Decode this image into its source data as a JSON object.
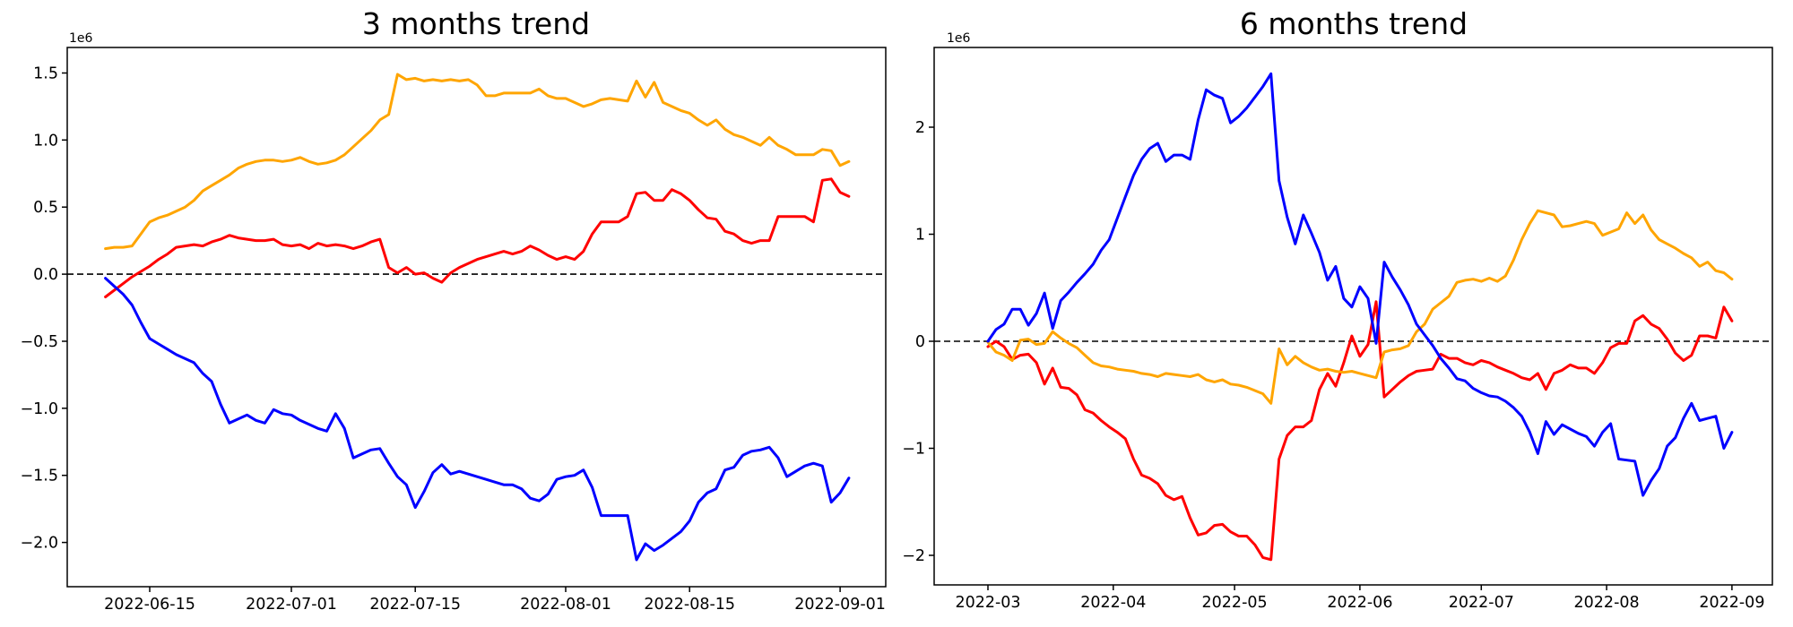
{
  "figure": {
    "background": "#ffffff",
    "text_color": "#000000"
  },
  "chart_data": [
    {
      "type": "line",
      "title": "3 months trend",
      "xlabel": "",
      "ylabel": "",
      "y_offset_label": "1e6",
      "y_unit": "1e6",
      "x_unit": "days since 2022-06-10",
      "grid": false,
      "legend": null,
      "zero_line": true,
      "x_range": [
        -4.32,
        88.16
      ],
      "y_range": [
        -2.33,
        1.69
      ],
      "x_ticks": [
        {
          "pos": 5,
          "label": "2022-06-15"
        },
        {
          "pos": 21,
          "label": "2022-07-01"
        },
        {
          "pos": 35,
          "label": "2022-07-15"
        },
        {
          "pos": 52,
          "label": "2022-08-01"
        },
        {
          "pos": 66,
          "label": "2022-08-15"
        },
        {
          "pos": 83,
          "label": "2022-09-01"
        }
      ],
      "y_ticks": [
        {
          "pos": 1.5,
          "label": "1.5"
        },
        {
          "pos": 1.0,
          "label": "1.0"
        },
        {
          "pos": 0.5,
          "label": "0.5"
        },
        {
          "pos": 0.0,
          "label": "0.0"
        },
        {
          "pos": -0.5,
          "label": "−0.5"
        },
        {
          "pos": -1.0,
          "label": "−1.0"
        },
        {
          "pos": -1.5,
          "label": "−1.5"
        },
        {
          "pos": -2.0,
          "label": "−2.0"
        }
      ],
      "series": [
        {
          "name": "red",
          "color": "#ff0000",
          "x_start": 0,
          "x_step": 1,
          "values": [
            -0.17,
            -0.12,
            -0.07,
            -0.02,
            0.02,
            0.06,
            0.11,
            0.15,
            0.2,
            0.21,
            0.22,
            0.21,
            0.24,
            0.26,
            0.29,
            0.27,
            0.26,
            0.25,
            0.25,
            0.26,
            0.22,
            0.21,
            0.22,
            0.19,
            0.23,
            0.21,
            0.22,
            0.21,
            0.19,
            0.21,
            0.24,
            0.26,
            0.05,
            0.01,
            0.05,
            0.0,
            0.01,
            -0.03,
            -0.06,
            0.01,
            0.05,
            0.08,
            0.11,
            0.13,
            0.15,
            0.17,
            0.15,
            0.17,
            0.21,
            0.18,
            0.14,
            0.11,
            0.13,
            0.11,
            0.17,
            0.3,
            0.39,
            0.39,
            0.39,
            0.43,
            0.6,
            0.61,
            0.55,
            0.55,
            0.63,
            0.6,
            0.55,
            0.48,
            0.42,
            0.41,
            0.32,
            0.3,
            0.25,
            0.23,
            0.25,
            0.25,
            0.43,
            0.43,
            0.43,
            0.43,
            0.39,
            0.7,
            0.71,
            0.61,
            0.58
          ]
        },
        {
          "name": "orange",
          "color": "#ffa500",
          "x_start": 0,
          "x_step": 1,
          "values": [
            0.19,
            0.2,
            0.2,
            0.21,
            0.3,
            0.39,
            0.42,
            0.44,
            0.47,
            0.5,
            0.55,
            0.62,
            0.66,
            0.7,
            0.74,
            0.79,
            0.82,
            0.84,
            0.85,
            0.85,
            0.84,
            0.85,
            0.87,
            0.84,
            0.82,
            0.83,
            0.85,
            0.89,
            0.95,
            1.01,
            1.07,
            1.15,
            1.19,
            1.49,
            1.45,
            1.46,
            1.44,
            1.45,
            1.44,
            1.45,
            1.44,
            1.45,
            1.41,
            1.33,
            1.33,
            1.35,
            1.35,
            1.35,
            1.35,
            1.38,
            1.33,
            1.31,
            1.31,
            1.28,
            1.25,
            1.27,
            1.3,
            1.31,
            1.3,
            1.29,
            1.44,
            1.32,
            1.43,
            1.28,
            1.25,
            1.22,
            1.2,
            1.15,
            1.11,
            1.15,
            1.08,
            1.04,
            1.02,
            0.99,
            0.96,
            1.02,
            0.96,
            0.93,
            0.89,
            0.89,
            0.89,
            0.93,
            0.92,
            0.81,
            0.84
          ]
        },
        {
          "name": "blue",
          "color": "#0000ff",
          "x_start": 0,
          "x_step": 1,
          "values": [
            -0.03,
            -0.09,
            -0.15,
            -0.23,
            -0.36,
            -0.48,
            -0.52,
            -0.56,
            -0.6,
            -0.63,
            -0.66,
            -0.74,
            -0.8,
            -0.97,
            -1.11,
            -1.08,
            -1.05,
            -1.09,
            -1.11,
            -1.01,
            -1.04,
            -1.05,
            -1.09,
            -1.12,
            -1.15,
            -1.17,
            -1.04,
            -1.15,
            -1.37,
            -1.34,
            -1.31,
            -1.3,
            -1.41,
            -1.51,
            -1.57,
            -1.74,
            -1.62,
            -1.48,
            -1.42,
            -1.49,
            -1.47,
            -1.49,
            -1.51,
            -1.53,
            -1.55,
            -1.57,
            -1.57,
            -1.6,
            -1.67,
            -1.69,
            -1.64,
            -1.53,
            -1.51,
            -1.5,
            -1.46,
            -1.59,
            -1.8,
            -1.8,
            -1.8,
            -1.8,
            -2.13,
            -2.01,
            -2.06,
            -2.02,
            -1.97,
            -1.92,
            -1.84,
            -1.7,
            -1.63,
            -1.6,
            -1.46,
            -1.44,
            -1.35,
            -1.32,
            -1.31,
            -1.29,
            -1.37,
            -1.51,
            -1.47,
            -1.43,
            -1.41,
            -1.43,
            -1.7,
            -1.63,
            -1.52
          ]
        }
      ]
    },
    {
      "type": "line",
      "title": "6 months trend",
      "xlabel": "",
      "ylabel": "",
      "y_offset_label": "1e6",
      "y_unit": "1e6",
      "x_unit": "days since 2022-03-01",
      "grid": false,
      "legend": null,
      "zero_line": true,
      "x_range": [
        -13.3,
        194.0
      ],
      "y_range": [
        -2.276,
        2.745
      ],
      "x_ticks": [
        {
          "pos": 0,
          "label": "2022-03"
        },
        {
          "pos": 31,
          "label": "2022-04"
        },
        {
          "pos": 61,
          "label": "2022-05"
        },
        {
          "pos": 92,
          "label": "2022-06"
        },
        {
          "pos": 122,
          "label": "2022-07"
        },
        {
          "pos": 153,
          "label": "2022-08"
        },
        {
          "pos": 184,
          "label": "2022-09"
        }
      ],
      "y_ticks": [
        {
          "pos": 2,
          "label": "2"
        },
        {
          "pos": 1,
          "label": "1"
        },
        {
          "pos": 0,
          "label": "0"
        },
        {
          "pos": -1,
          "label": "−1"
        },
        {
          "pos": -2,
          "label": "−2"
        }
      ],
      "series": [
        {
          "name": "red",
          "color": "#ff0000",
          "x_start": 0,
          "x_step": 2,
          "values": [
            -0.05,
            0.0,
            -0.05,
            -0.17,
            -0.13,
            -0.12,
            -0.2,
            -0.4,
            -0.25,
            -0.43,
            -0.44,
            -0.5,
            -0.64,
            -0.67,
            -0.74,
            -0.8,
            -0.85,
            -0.91,
            -1.1,
            -1.25,
            -1.28,
            -1.33,
            -1.44,
            -1.48,
            -1.45,
            -1.65,
            -1.81,
            -1.79,
            -1.72,
            -1.71,
            -1.78,
            -1.82,
            -1.82,
            -1.9,
            -2.02,
            -2.04,
            -1.1,
            -0.88,
            -0.8,
            -0.8,
            -0.74,
            -0.45,
            -0.3,
            -0.42,
            -0.2,
            0.05,
            -0.14,
            -0.03,
            0.37,
            -0.52,
            -0.45,
            -0.38,
            -0.32,
            -0.28,
            -0.27,
            -0.26,
            -0.12,
            -0.16,
            -0.16,
            -0.2,
            -0.22,
            -0.18,
            -0.2,
            -0.24,
            -0.27,
            -0.3,
            -0.34,
            -0.36,
            -0.3,
            -0.45,
            -0.3,
            -0.27,
            -0.22,
            -0.25,
            -0.25,
            -0.3,
            -0.2,
            -0.06,
            -0.02,
            -0.02,
            0.19,
            0.24,
            0.16,
            0.12,
            0.02,
            -0.11,
            -0.18,
            -0.13,
            0.05,
            0.05,
            0.03,
            0.32,
            0.19
          ]
        },
        {
          "name": "orange",
          "color": "#ffa500",
          "x_start": 0,
          "x_step": 2,
          "values": [
            -0.01,
            -0.1,
            -0.13,
            -0.18,
            0.01,
            0.02,
            -0.03,
            -0.02,
            0.09,
            0.03,
            -0.02,
            -0.06,
            -0.13,
            -0.2,
            -0.23,
            -0.24,
            -0.26,
            -0.27,
            -0.28,
            -0.3,
            -0.31,
            -0.33,
            -0.3,
            -0.31,
            -0.32,
            -0.33,
            -0.31,
            -0.36,
            -0.38,
            -0.36,
            -0.4,
            -0.41,
            -0.43,
            -0.46,
            -0.49,
            -0.58,
            -0.07,
            -0.22,
            -0.14,
            -0.2,
            -0.24,
            -0.27,
            -0.26,
            -0.28,
            -0.29,
            -0.28,
            -0.3,
            -0.32,
            -0.34,
            -0.1,
            -0.08,
            -0.07,
            -0.04,
            0.09,
            0.16,
            0.3,
            0.36,
            0.42,
            0.55,
            0.57,
            0.58,
            0.56,
            0.59,
            0.56,
            0.61,
            0.76,
            0.95,
            1.1,
            1.22,
            1.2,
            1.18,
            1.07,
            1.08,
            1.1,
            1.12,
            1.1,
            0.99,
            1.02,
            1.05,
            1.2,
            1.1,
            1.18,
            1.04,
            0.95,
            0.91,
            0.87,
            0.82,
            0.78,
            0.7,
            0.74,
            0.66,
            0.64,
            0.58
          ]
        },
        {
          "name": "blue",
          "color": "#0000ff",
          "x_start": 0,
          "x_step": 2,
          "values": [
            0.0,
            0.11,
            0.16,
            0.3,
            0.3,
            0.15,
            0.26,
            0.45,
            0.12,
            0.38,
            0.46,
            0.55,
            0.63,
            0.72,
            0.85,
            0.95,
            1.15,
            1.35,
            1.55,
            1.7,
            1.8,
            1.85,
            1.68,
            1.74,
            1.74,
            1.7,
            2.07,
            2.35,
            2.3,
            2.27,
            2.04,
            2.1,
            2.18,
            2.28,
            2.38,
            2.5,
            1.5,
            1.16,
            0.91,
            1.18,
            1.01,
            0.83,
            0.57,
            0.7,
            0.4,
            0.32,
            0.51,
            0.4,
            -0.02,
            0.74,
            0.6,
            0.48,
            0.34,
            0.16,
            0.06,
            -0.04,
            -0.16,
            -0.25,
            -0.35,
            -0.37,
            -0.44,
            -0.48,
            -0.51,
            -0.52,
            -0.56,
            -0.62,
            -0.7,
            -0.85,
            -1.05,
            -0.75,
            -0.87,
            -0.78,
            -0.82,
            -0.86,
            -0.89,
            -0.98,
            -0.85,
            -0.77,
            -1.1,
            -1.11,
            -1.12,
            -1.44,
            -1.3,
            -1.19,
            -0.98,
            -0.9,
            -0.72,
            -0.58,
            -0.74,
            -0.72,
            -0.7,
            -1.0,
            -0.85
          ]
        }
      ]
    }
  ]
}
